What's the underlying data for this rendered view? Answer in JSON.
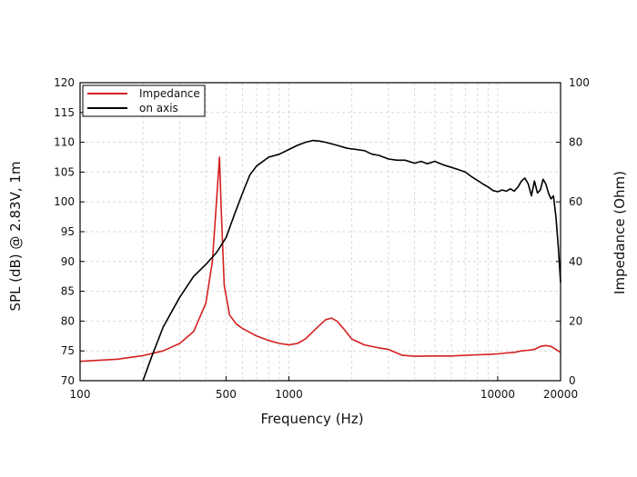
{
  "chart_data": {
    "type": "line",
    "title": "",
    "xlabel": "Frequency (Hz)",
    "ylabel_left": "SPL (dB) @ 2.83V, 1m",
    "ylabel_right": "Impedance (Ohm)",
    "x_scale": "log",
    "xlim": [
      100,
      20000
    ],
    "ylim_left": [
      70,
      120
    ],
    "ylim_right": [
      0,
      100
    ],
    "x_ticks": [
      100,
      500,
      1000,
      10000,
      20000
    ],
    "x_tick_labels": [
      "100",
      "500",
      "1000",
      "10000",
      "20000"
    ],
    "y_left_ticks": [
      70,
      75,
      80,
      85,
      90,
      95,
      100,
      105,
      110,
      115,
      120
    ],
    "y_left_tick_labels": [
      "70",
      "75",
      "80",
      "85",
      "90",
      "95",
      "100",
      "105",
      "110",
      "115",
      "120"
    ],
    "y_right_ticks": [
      0,
      20,
      40,
      60,
      80,
      100
    ],
    "y_right_tick_labels": [
      "0",
      "20",
      "40",
      "60",
      "80",
      "100"
    ],
    "grid": true,
    "legend_position": "top-left",
    "series": [
      {
        "name": "Impedance",
        "axis": "right",
        "color": "#d42020",
        "points": [
          [
            100,
            6.5
          ],
          [
            150,
            7.2
          ],
          [
            200,
            8.4
          ],
          [
            250,
            10.0
          ],
          [
            300,
            12.5
          ],
          [
            350,
            16.5
          ],
          [
            400,
            26.0
          ],
          [
            430,
            40.0
          ],
          [
            450,
            60.0
          ],
          [
            465,
            75.0
          ],
          [
            475,
            56.0
          ],
          [
            490,
            32.0
          ],
          [
            520,
            22.0
          ],
          [
            560,
            19.0
          ],
          [
            600,
            17.5
          ],
          [
            700,
            15.0
          ],
          [
            800,
            13.5
          ],
          [
            900,
            12.5
          ],
          [
            1000,
            12.0
          ],
          [
            1100,
            12.5
          ],
          [
            1200,
            14.0
          ],
          [
            1350,
            17.5
          ],
          [
            1500,
            20.5
          ],
          [
            1600,
            21.0
          ],
          [
            1700,
            20.0
          ],
          [
            1850,
            17.0
          ],
          [
            2000,
            14.0
          ],
          [
            2300,
            12.0
          ],
          [
            2700,
            11.0
          ],
          [
            3000,
            10.5
          ],
          [
            3500,
            8.5
          ],
          [
            4000,
            8.2
          ],
          [
            5000,
            8.3
          ],
          [
            6000,
            8.3
          ],
          [
            7000,
            8.5
          ],
          [
            8000,
            8.7
          ],
          [
            9000,
            8.8
          ],
          [
            10000,
            9.0
          ],
          [
            11000,
            9.3
          ],
          [
            12000,
            9.5
          ],
          [
            13000,
            10.0
          ],
          [
            14000,
            10.2
          ],
          [
            15000,
            10.5
          ],
          [
            16000,
            11.5
          ],
          [
            17000,
            11.8
          ],
          [
            18000,
            11.5
          ],
          [
            19000,
            10.5
          ],
          [
            20000,
            9.5
          ]
        ]
      },
      {
        "name": "on axis",
        "axis": "left",
        "color": "#000000",
        "points": [
          [
            200,
            70.0
          ],
          [
            220,
            74.0
          ],
          [
            250,
            79.0
          ],
          [
            300,
            84.0
          ],
          [
            350,
            87.5
          ],
          [
            400,
            89.5
          ],
          [
            450,
            91.5
          ],
          [
            500,
            94.0
          ],
          [
            550,
            98.0
          ],
          [
            600,
            101.5
          ],
          [
            650,
            104.5
          ],
          [
            700,
            106.0
          ],
          [
            800,
            107.5
          ],
          [
            900,
            108.0
          ],
          [
            1000,
            108.8
          ],
          [
            1100,
            109.5
          ],
          [
            1200,
            110.0
          ],
          [
            1300,
            110.3
          ],
          [
            1400,
            110.2
          ],
          [
            1500,
            110.0
          ],
          [
            1700,
            109.5
          ],
          [
            1900,
            109.0
          ],
          [
            2100,
            108.8
          ],
          [
            2300,
            108.6
          ],
          [
            2500,
            108.0
          ],
          [
            2700,
            107.8
          ],
          [
            3000,
            107.2
          ],
          [
            3300,
            107.0
          ],
          [
            3600,
            107.0
          ],
          [
            4000,
            106.5
          ],
          [
            4300,
            106.8
          ],
          [
            4600,
            106.4
          ],
          [
            5000,
            106.8
          ],
          [
            5500,
            106.2
          ],
          [
            6000,
            105.8
          ],
          [
            6500,
            105.4
          ],
          [
            7000,
            105.0
          ],
          [
            7500,
            104.2
          ],
          [
            8000,
            103.6
          ],
          [
            8500,
            103.0
          ],
          [
            9000,
            102.5
          ],
          [
            9500,
            101.9
          ],
          [
            10000,
            101.7
          ],
          [
            10500,
            102.0
          ],
          [
            11000,
            101.8
          ],
          [
            11500,
            102.2
          ],
          [
            12000,
            101.8
          ],
          [
            12500,
            102.5
          ],
          [
            13000,
            103.5
          ],
          [
            13500,
            104.0
          ],
          [
            14000,
            103.0
          ],
          [
            14500,
            101.0
          ],
          [
            15000,
            103.5
          ],
          [
            15500,
            101.5
          ],
          [
            16000,
            102.0
          ],
          [
            16500,
            103.8
          ],
          [
            17000,
            103.0
          ],
          [
            17500,
            101.5
          ],
          [
            18000,
            100.5
          ],
          [
            18500,
            101.0
          ],
          [
            19000,
            97.5
          ],
          [
            19500,
            92.5
          ],
          [
            20000,
            86.5
          ]
        ]
      }
    ]
  }
}
